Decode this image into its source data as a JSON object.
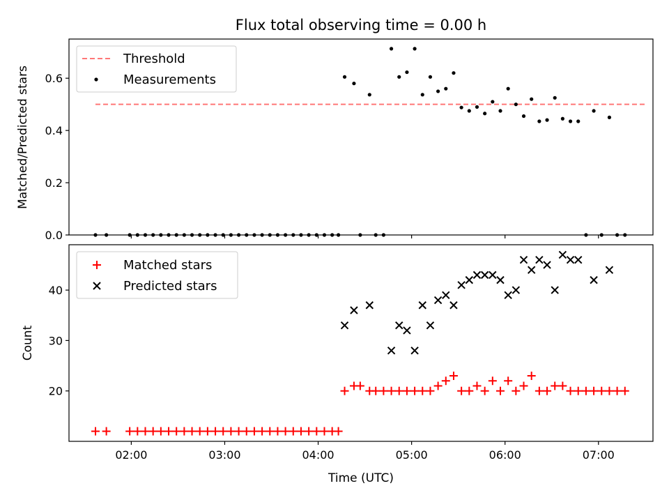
{
  "chart_data": [
    {
      "type": "scatter",
      "title": "Flux total observing time = 0.00 h",
      "xlabel": "",
      "ylabel": "Matched/Predicted stars",
      "xlim": [
        "01:20",
        "07:35"
      ],
      "ylim": [
        0,
        0.75
      ],
      "yticks": [
        "0.0",
        "0.2",
        "0.4",
        "0.6"
      ],
      "grid": false,
      "legend_position": "top-left",
      "threshold": {
        "name": "Threshold",
        "value": 0.5,
        "x_range": [
          "01:37",
          "07:30"
        ],
        "color": "#ff7777",
        "style": "dashed"
      },
      "series": [
        {
          "name": "Measurements",
          "marker": "dot",
          "color": "#000000",
          "points": [
            [
              "01:37",
              0.0
            ],
            [
              "01:44",
              0.0
            ],
            [
              "01:59",
              0.0
            ],
            [
              "02:04",
              0.0
            ],
            [
              "02:09",
              0.0
            ],
            [
              "02:14",
              0.0
            ],
            [
              "02:19",
              0.0
            ],
            [
              "02:24",
              0.0
            ],
            [
              "02:29",
              0.0
            ],
            [
              "02:34",
              0.0
            ],
            [
              "02:39",
              0.0
            ],
            [
              "02:44",
              0.0
            ],
            [
              "02:49",
              0.0
            ],
            [
              "02:54",
              0.0
            ],
            [
              "02:59",
              0.0
            ],
            [
              "03:04",
              0.0
            ],
            [
              "03:09",
              0.0
            ],
            [
              "03:14",
              0.0
            ],
            [
              "03:19",
              0.0
            ],
            [
              "03:24",
              0.0
            ],
            [
              "03:29",
              0.0
            ],
            [
              "03:34",
              0.0
            ],
            [
              "03:39",
              0.0
            ],
            [
              "03:44",
              0.0
            ],
            [
              "03:49",
              0.0
            ],
            [
              "03:54",
              0.0
            ],
            [
              "03:59",
              0.0
            ],
            [
              "04:04",
              0.0
            ],
            [
              "04:09",
              0.0
            ],
            [
              "04:13",
              0.0
            ],
            [
              "04:17",
              0.605
            ],
            [
              "04:23",
              0.58
            ],
            [
              "04:27",
              0.0
            ],
            [
              "04:33",
              0.537
            ],
            [
              "04:37",
              0.0
            ],
            [
              "04:42",
              0.0
            ],
            [
              "04:47",
              0.713
            ],
            [
              "04:52",
              0.605
            ],
            [
              "04:57",
              0.623
            ],
            [
              "05:02",
              0.713
            ],
            [
              "05:07",
              0.537
            ],
            [
              "05:12",
              0.605
            ],
            [
              "05:17",
              0.55
            ],
            [
              "05:22",
              0.56
            ],
            [
              "05:27",
              0.62
            ],
            [
              "05:32",
              0.488
            ],
            [
              "05:37",
              0.475
            ],
            [
              "05:42",
              0.49
            ],
            [
              "05:47",
              0.465
            ],
            [
              "05:52",
              0.51
            ],
            [
              "05:57",
              0.475
            ],
            [
              "06:02",
              0.56
            ],
            [
              "06:07",
              0.5
            ],
            [
              "06:12",
              0.455
            ],
            [
              "06:17",
              0.52
            ],
            [
              "06:22",
              0.435
            ],
            [
              "06:27",
              0.44
            ],
            [
              "06:32",
              0.525
            ],
            [
              "06:37",
              0.445
            ],
            [
              "06:42",
              0.435
            ],
            [
              "06:47",
              0.435
            ],
            [
              "06:52",
              0.0
            ],
            [
              "06:57",
              0.475
            ],
            [
              "07:02",
              0.0
            ],
            [
              "07:07",
              0.45
            ],
            [
              "07:12",
              0.0
            ],
            [
              "07:17",
              0.0
            ]
          ]
        }
      ]
    },
    {
      "type": "scatter",
      "title": "",
      "xlabel": "Time (UTC)",
      "ylabel": "Count",
      "xlim": [
        "01:20",
        "07:35"
      ],
      "ylim": [
        10,
        49
      ],
      "xticks": [
        "02:00",
        "03:00",
        "04:00",
        "05:00",
        "06:00",
        "07:00"
      ],
      "yticks": [
        "20",
        "30",
        "40"
      ],
      "grid": false,
      "legend_position": "top-left",
      "series": [
        {
          "name": "Matched stars",
          "marker": "plus",
          "color": "#ff0000",
          "points": [
            [
              "01:37",
              12
            ],
            [
              "01:44",
              12
            ],
            [
              "01:59",
              12
            ],
            [
              "02:04",
              12
            ],
            [
              "02:09",
              12
            ],
            [
              "02:14",
              12
            ],
            [
              "02:19",
              12
            ],
            [
              "02:24",
              12
            ],
            [
              "02:29",
              12
            ],
            [
              "02:34",
              12
            ],
            [
              "02:39",
              12
            ],
            [
              "02:44",
              12
            ],
            [
              "02:49",
              12
            ],
            [
              "02:54",
              12
            ],
            [
              "02:59",
              12
            ],
            [
              "03:04",
              12
            ],
            [
              "03:09",
              12
            ],
            [
              "03:14",
              12
            ],
            [
              "03:19",
              12
            ],
            [
              "03:24",
              12
            ],
            [
              "03:29",
              12
            ],
            [
              "03:34",
              12
            ],
            [
              "03:39",
              12
            ],
            [
              "03:44",
              12
            ],
            [
              "03:49",
              12
            ],
            [
              "03:54",
              12
            ],
            [
              "03:59",
              12
            ],
            [
              "04:04",
              12
            ],
            [
              "04:09",
              12
            ],
            [
              "04:13",
              12
            ],
            [
              "04:17",
              20
            ],
            [
              "04:23",
              21
            ],
            [
              "04:27",
              21
            ],
            [
              "04:33",
              20
            ],
            [
              "04:37",
              20
            ],
            [
              "04:42",
              20
            ],
            [
              "04:47",
              20
            ],
            [
              "04:52",
              20
            ],
            [
              "04:57",
              20
            ],
            [
              "05:02",
              20
            ],
            [
              "05:07",
              20
            ],
            [
              "05:12",
              20
            ],
            [
              "05:17",
              21
            ],
            [
              "05:22",
              22
            ],
            [
              "05:27",
              23
            ],
            [
              "05:32",
              20
            ],
            [
              "05:37",
              20
            ],
            [
              "05:42",
              21
            ],
            [
              "05:47",
              20
            ],
            [
              "05:52",
              22
            ],
            [
              "05:57",
              20
            ],
            [
              "06:02",
              22
            ],
            [
              "06:07",
              20
            ],
            [
              "06:12",
              21
            ],
            [
              "06:17",
              23
            ],
            [
              "06:22",
              20
            ],
            [
              "06:27",
              20
            ],
            [
              "06:32",
              21
            ],
            [
              "06:37",
              21
            ],
            [
              "06:42",
              20
            ],
            [
              "06:47",
              20
            ],
            [
              "06:52",
              20
            ],
            [
              "06:57",
              20
            ],
            [
              "07:02",
              20
            ],
            [
              "07:07",
              20
            ],
            [
              "07:12",
              20
            ],
            [
              "07:17",
              20
            ]
          ]
        },
        {
          "name": "Predicted stars",
          "marker": "x",
          "color": "#000000",
          "points": [
            [
              "04:17",
              33
            ],
            [
              "04:23",
              36
            ],
            [
              "04:33",
              37
            ],
            [
              "04:47",
              28
            ],
            [
              "04:52",
              33
            ],
            [
              "04:57",
              32
            ],
            [
              "05:02",
              28
            ],
            [
              "05:07",
              37
            ],
            [
              "05:12",
              33
            ],
            [
              "05:17",
              38
            ],
            [
              "05:22",
              39
            ],
            [
              "05:27",
              37
            ],
            [
              "05:32",
              41
            ],
            [
              "05:37",
              42
            ],
            [
              "05:42",
              43
            ],
            [
              "05:47",
              43
            ],
            [
              "05:52",
              43
            ],
            [
              "05:57",
              42
            ],
            [
              "06:02",
              39
            ],
            [
              "06:07",
              40
            ],
            [
              "06:12",
              46
            ],
            [
              "06:17",
              44
            ],
            [
              "06:22",
              46
            ],
            [
              "06:27",
              45
            ],
            [
              "06:32",
              40
            ],
            [
              "06:37",
              47
            ],
            [
              "06:42",
              46
            ],
            [
              "06:47",
              46
            ],
            [
              "06:57",
              42
            ],
            [
              "07:07",
              44
            ]
          ]
        }
      ]
    }
  ]
}
